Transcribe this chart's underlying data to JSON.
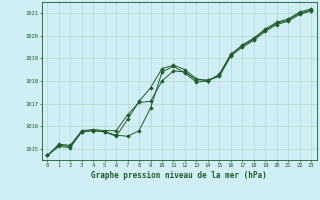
{
  "title": "Graphe pression niveau de la mer (hPa)",
  "background_color": "#d0eef5",
  "grid_color": "#b8d8cc",
  "line_color": "#1e5c28",
  "xlim": [
    -0.5,
    23.5
  ],
  "ylim": [
    1014.5,
    1021.5
  ],
  "yticks": [
    1015,
    1016,
    1017,
    1018,
    1019,
    1020,
    1021
  ],
  "xticks": [
    0,
    1,
    2,
    3,
    4,
    5,
    6,
    7,
    8,
    9,
    10,
    11,
    12,
    13,
    14,
    15,
    16,
    17,
    18,
    19,
    20,
    21,
    22,
    23
  ],
  "series1": [
    1014.7,
    1015.2,
    1015.15,
    1015.8,
    1015.85,
    1015.8,
    1015.8,
    1016.5,
    1017.05,
    1017.1,
    1018.0,
    1018.45,
    1018.4,
    1018.05,
    1018.05,
    1018.2,
    1019.1,
    1019.5,
    1019.8,
    1020.2,
    1020.5,
    1020.65,
    1020.95,
    1021.1
  ],
  "series2": [
    1014.7,
    1015.15,
    1015.1,
    1015.75,
    1015.8,
    1015.75,
    1015.6,
    1015.55,
    1015.8,
    1016.8,
    1018.4,
    1018.65,
    1018.35,
    1017.95,
    1018.0,
    1018.3,
    1019.2,
    1019.55,
    1019.85,
    1020.25,
    1020.55,
    1020.7,
    1021.0,
    1021.15
  ],
  "series3": [
    1014.7,
    1015.1,
    1015.05,
    1015.75,
    1015.8,
    1015.75,
    1015.55,
    1016.3,
    1017.1,
    1017.7,
    1018.55,
    1018.7,
    1018.5,
    1018.1,
    1018.0,
    1018.25,
    1019.15,
    1019.6,
    1019.9,
    1020.3,
    1020.6,
    1020.75,
    1021.05,
    1021.2
  ]
}
